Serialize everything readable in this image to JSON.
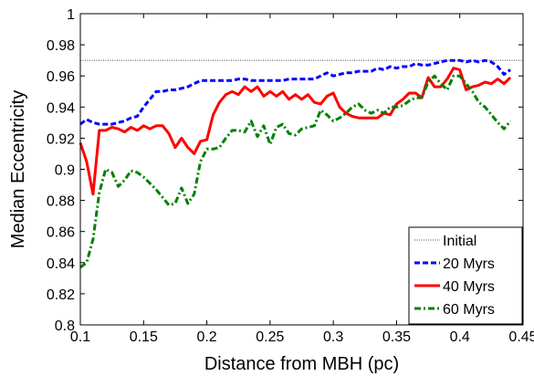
{
  "chart_data": {
    "type": "line",
    "xlabel": "Distance from MBH (pc)",
    "ylabel": "Median Eccentricity",
    "xlim": [
      0.1,
      0.45
    ],
    "ylim": [
      0.8,
      1.0
    ],
    "xticks": [
      "0.1",
      "0.15",
      "0.2",
      "0.25",
      "0.3",
      "0.35",
      "0.4",
      "0.45"
    ],
    "yticks": [
      "0.8",
      "0.82",
      "0.84",
      "0.86",
      "0.88",
      "0.9",
      "0.92",
      "0.94",
      "0.96",
      "0.98",
      "1"
    ],
    "grid": false,
    "legend_position": "bottom-right",
    "initial_value": 0.97,
    "series": [
      {
        "name": "Initial",
        "color": "#808080",
        "style": "dotted",
        "x": [
          0.1,
          0.45
        ],
        "y": [
          0.97,
          0.97
        ]
      },
      {
        "name": "20 Myrs",
        "color": "#0000ff",
        "style": "dashed",
        "x": [
          0.1,
          0.105,
          0.11,
          0.115,
          0.12,
          0.125,
          0.13,
          0.135,
          0.14,
          0.145,
          0.15,
          0.155,
          0.16,
          0.165,
          0.17,
          0.175,
          0.18,
          0.185,
          0.19,
          0.195,
          0.2,
          0.205,
          0.21,
          0.215,
          0.22,
          0.225,
          0.23,
          0.235,
          0.24,
          0.245,
          0.25,
          0.255,
          0.26,
          0.265,
          0.27,
          0.275,
          0.28,
          0.285,
          0.29,
          0.295,
          0.3,
          0.305,
          0.31,
          0.315,
          0.32,
          0.325,
          0.33,
          0.335,
          0.34,
          0.345,
          0.35,
          0.355,
          0.36,
          0.365,
          0.37,
          0.375,
          0.38,
          0.385,
          0.39,
          0.395,
          0.4,
          0.405,
          0.41,
          0.415,
          0.42,
          0.425,
          0.43,
          0.435,
          0.44
        ],
        "y": [
          0.929,
          0.932,
          0.93,
          0.929,
          0.929,
          0.929,
          0.93,
          0.931,
          0.933,
          0.934,
          0.94,
          0.945,
          0.95,
          0.95,
          0.951,
          0.951,
          0.952,
          0.953,
          0.955,
          0.957,
          0.957,
          0.957,
          0.957,
          0.957,
          0.957,
          0.958,
          0.958,
          0.957,
          0.957,
          0.957,
          0.957,
          0.957,
          0.957,
          0.958,
          0.958,
          0.958,
          0.958,
          0.958,
          0.96,
          0.962,
          0.96,
          0.961,
          0.962,
          0.962,
          0.963,
          0.963,
          0.963,
          0.965,
          0.964,
          0.966,
          0.965,
          0.966,
          0.966,
          0.968,
          0.967,
          0.967,
          0.968,
          0.969,
          0.97,
          0.97,
          0.97,
          0.969,
          0.97,
          0.969,
          0.97,
          0.969,
          0.966,
          0.961,
          0.964
        ]
      },
      {
        "name": "40 Myrs",
        "color": "#ff0000",
        "style": "solid",
        "x": [
          0.1,
          0.105,
          0.11,
          0.115,
          0.12,
          0.125,
          0.13,
          0.135,
          0.14,
          0.145,
          0.15,
          0.155,
          0.16,
          0.165,
          0.17,
          0.175,
          0.18,
          0.185,
          0.19,
          0.195,
          0.2,
          0.205,
          0.21,
          0.215,
          0.22,
          0.225,
          0.23,
          0.235,
          0.24,
          0.245,
          0.25,
          0.255,
          0.26,
          0.265,
          0.27,
          0.275,
          0.28,
          0.285,
          0.29,
          0.295,
          0.3,
          0.305,
          0.31,
          0.315,
          0.32,
          0.325,
          0.33,
          0.335,
          0.34,
          0.345,
          0.35,
          0.355,
          0.36,
          0.365,
          0.37,
          0.375,
          0.38,
          0.385,
          0.39,
          0.395,
          0.4,
          0.405,
          0.41,
          0.415,
          0.42,
          0.425,
          0.43,
          0.435,
          0.44
        ],
        "y": [
          0.917,
          0.905,
          0.884,
          0.925,
          0.925,
          0.927,
          0.926,
          0.924,
          0.927,
          0.925,
          0.928,
          0.926,
          0.928,
          0.928,
          0.923,
          0.914,
          0.92,
          0.914,
          0.91,
          0.918,
          0.919,
          0.935,
          0.943,
          0.948,
          0.95,
          0.948,
          0.953,
          0.95,
          0.953,
          0.947,
          0.95,
          0.947,
          0.95,
          0.945,
          0.948,
          0.945,
          0.948,
          0.943,
          0.942,
          0.947,
          0.949,
          0.94,
          0.936,
          0.934,
          0.933,
          0.933,
          0.933,
          0.933,
          0.936,
          0.935,
          0.942,
          0.945,
          0.949,
          0.949,
          0.946,
          0.959,
          0.953,
          0.953,
          0.958,
          0.965,
          0.964,
          0.951,
          0.953,
          0.954,
          0.956,
          0.955,
          0.958,
          0.955,
          0.959
        ]
      },
      {
        "name": "60 Myrs",
        "color": "#008000",
        "style": "dashdot",
        "x": [
          0.1,
          0.105,
          0.11,
          0.115,
          0.12,
          0.125,
          0.13,
          0.135,
          0.14,
          0.145,
          0.15,
          0.155,
          0.16,
          0.165,
          0.17,
          0.175,
          0.18,
          0.185,
          0.19,
          0.195,
          0.2,
          0.205,
          0.21,
          0.215,
          0.22,
          0.225,
          0.23,
          0.235,
          0.24,
          0.245,
          0.25,
          0.255,
          0.26,
          0.265,
          0.27,
          0.275,
          0.28,
          0.285,
          0.29,
          0.295,
          0.3,
          0.305,
          0.31,
          0.315,
          0.32,
          0.325,
          0.33,
          0.335,
          0.34,
          0.345,
          0.35,
          0.355,
          0.36,
          0.365,
          0.37,
          0.375,
          0.38,
          0.385,
          0.39,
          0.395,
          0.4,
          0.405,
          0.41,
          0.415,
          0.42,
          0.425,
          0.43,
          0.435,
          0.44
        ],
        "y": [
          0.837,
          0.84,
          0.855,
          0.885,
          0.9,
          0.898,
          0.889,
          0.893,
          0.899,
          0.898,
          0.895,
          0.891,
          0.887,
          0.882,
          0.877,
          0.878,
          0.888,
          0.878,
          0.884,
          0.905,
          0.913,
          0.913,
          0.914,
          0.92,
          0.925,
          0.925,
          0.924,
          0.931,
          0.921,
          0.928,
          0.916,
          0.927,
          0.929,
          0.923,
          0.922,
          0.926,
          0.927,
          0.928,
          0.938,
          0.935,
          0.931,
          0.933,
          0.936,
          0.94,
          0.942,
          0.938,
          0.936,
          0.938,
          0.936,
          0.94,
          0.94,
          0.941,
          0.944,
          0.946,
          0.946,
          0.956,
          0.96,
          0.955,
          0.951,
          0.96,
          0.96,
          0.955,
          0.95,
          0.943,
          0.94,
          0.935,
          0.93,
          0.926,
          0.931
        ]
      }
    ]
  }
}
